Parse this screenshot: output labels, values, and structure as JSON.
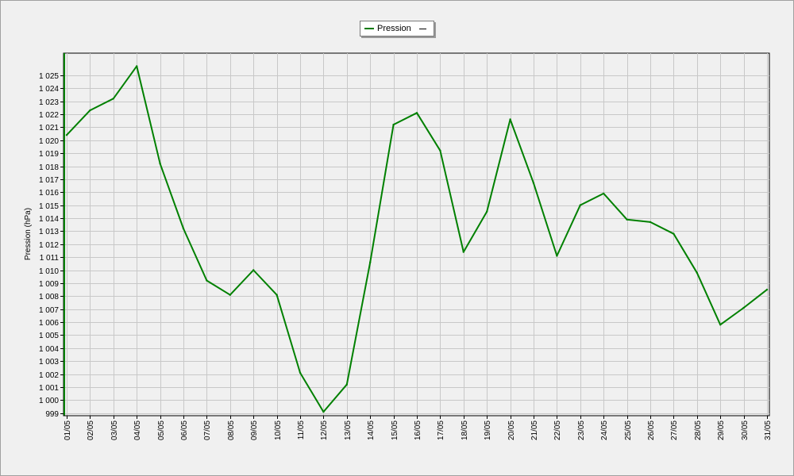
{
  "legend": {
    "entries": [
      {
        "label": "Pression",
        "color": "#008000"
      }
    ]
  },
  "chart_data": {
    "type": "line",
    "title": "",
    "xlabel": "",
    "ylabel": "Pression (hPa)",
    "ylim": [
      998.8,
      1026.7
    ],
    "yticks": [
      999,
      1000,
      1001,
      1002,
      1003,
      1004,
      1005,
      1006,
      1007,
      1008,
      1009,
      1010,
      1011,
      1012,
      1013,
      1014,
      1015,
      1016,
      1017,
      1018,
      1019,
      1020,
      1021,
      1022,
      1023,
      1024,
      1025
    ],
    "ytick_labels": [
      "999",
      "1 000",
      "1 001",
      "1 002",
      "1 003",
      "1 004",
      "1 005",
      "1 006",
      "1 007",
      "1 008",
      "1 009",
      "1 010",
      "1 011",
      "1 012",
      "1 013",
      "1 014",
      "1 015",
      "1 016",
      "1 017",
      "1 018",
      "1 019",
      "1 020",
      "1 021",
      "1 022",
      "1 023",
      "1 024",
      "1 025"
    ],
    "categories": [
      "01/05",
      "02/05",
      "03/05",
      "04/05",
      "05/05",
      "06/05",
      "07/05",
      "08/05",
      "09/05",
      "10/05",
      "11/05",
      "12/05",
      "13/05",
      "14/05",
      "15/05",
      "16/05",
      "17/05",
      "18/05",
      "19/05",
      "20/05",
      "21/05",
      "22/05",
      "23/05",
      "24/05",
      "25/05",
      "26/05",
      "27/05",
      "28/05",
      "29/05",
      "30/05",
      "31/05"
    ],
    "series": [
      {
        "name": "Pression",
        "color": "#008000",
        "values": [
          1020.4,
          1022.3,
          1023.2,
          1025.7,
          1018.2,
          1013.2,
          1009.2,
          1008.1,
          1010.0,
          1008.1,
          1002.1,
          999.1,
          1001.2,
          1010.6,
          1021.2,
          1022.1,
          1019.2,
          1011.4,
          1014.5,
          1021.6,
          1016.7,
          1011.1,
          1015.0,
          1015.9,
          1013.9,
          1013.7,
          1012.8,
          1009.8,
          1005.8,
          1007.1,
          1008.5
        ]
      }
    ],
    "grid": true,
    "legend_position": "top-center"
  }
}
